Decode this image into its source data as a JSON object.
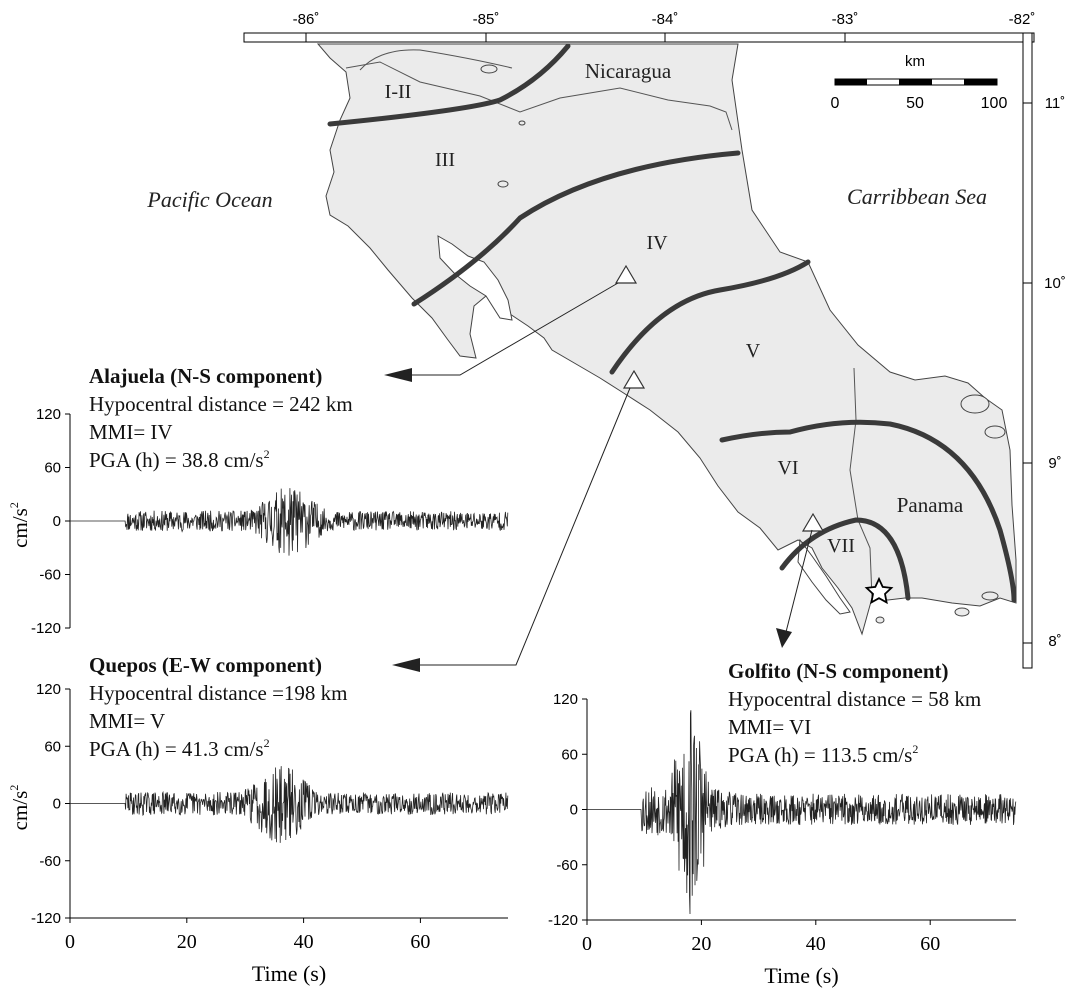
{
  "map": {
    "lon_labels": [
      "-86˚",
      "-85˚",
      "-84˚",
      "-83˚",
      "-82˚"
    ],
    "lat_labels": [
      "11˚",
      "10˚",
      "9˚",
      "8˚"
    ],
    "scale": {
      "unit": "km",
      "ticks": [
        "0",
        "50",
        "100"
      ]
    },
    "water_labels": {
      "pacific": "Pacific Ocean",
      "caribbean": "Carribbean Sea"
    },
    "country_labels": {
      "nicaragua": "Nicaragua",
      "panama": "Panama"
    },
    "intensity_zones": [
      "I-II",
      "III",
      "IV",
      "V",
      "VI",
      "VII"
    ],
    "colors": {
      "land": "#ebebeb",
      "isoseismal": "#3a3a3a",
      "coast": "#444444"
    }
  },
  "stations": [
    {
      "title": "Alajuela (N-S component)",
      "distance": "Hypocentral distance = 242 km",
      "mmi": "MMI= IV",
      "pga_main": "PGA (h) = 38.8 cm/s",
      "pga_sup": "2"
    },
    {
      "title": "Quepos (E-W component)",
      "distance": "Hypocentral distance =198 km",
      "mmi": "MMI= V",
      "pga_main": "PGA (h) = 41.3 cm/s",
      "pga_sup": "2"
    },
    {
      "title": "Golfito (N-S component)",
      "distance": "Hypocentral distance = 58 km",
      "mmi": "MMI= VI",
      "pga_main": "PGA (h) = 113.5  cm/s",
      "pga_sup": "2"
    }
  ],
  "chart_data": [
    {
      "type": "line",
      "station": "Alajuela",
      "ylabel_main": "cm/s",
      "ylabel_sup": "2",
      "y_ticks": [
        "120",
        "60",
        "0",
        "-60",
        "-120"
      ],
      "ylim": [
        -120,
        120
      ],
      "xlim": [
        0,
        75
      ],
      "trace": {
        "onset_s": 9.5,
        "pga": 38.8,
        "peak_time_s": 37.5,
        "end_s": 75
      }
    },
    {
      "type": "line",
      "station": "Quepos",
      "ylabel_main": "cm/s",
      "ylabel_sup": "2",
      "y_ticks": [
        "120",
        "60",
        "0",
        "-60",
        "-120"
      ],
      "x_ticks": [
        "0",
        "20",
        "40",
        "60"
      ],
      "xlabel": "Time (s)",
      "ylim": [
        -120,
        120
      ],
      "xlim": [
        0,
        75
      ],
      "trace": {
        "onset_s": 9.5,
        "pga": 41.3,
        "peak_time_s": 36,
        "end_s": 75
      }
    },
    {
      "type": "line",
      "station": "Golfito",
      "y_ticks": [
        "120",
        "60",
        "0",
        "-60",
        "-120"
      ],
      "x_ticks": [
        "0",
        "20",
        "40",
        "60"
      ],
      "xlabel": "Time (s)",
      "ylim": [
        -120,
        120
      ],
      "xlim": [
        0,
        75
      ],
      "trace": {
        "onset_s": 9.5,
        "pga": 113.5,
        "peak_time_s": 18,
        "end_s": 75
      }
    }
  ]
}
